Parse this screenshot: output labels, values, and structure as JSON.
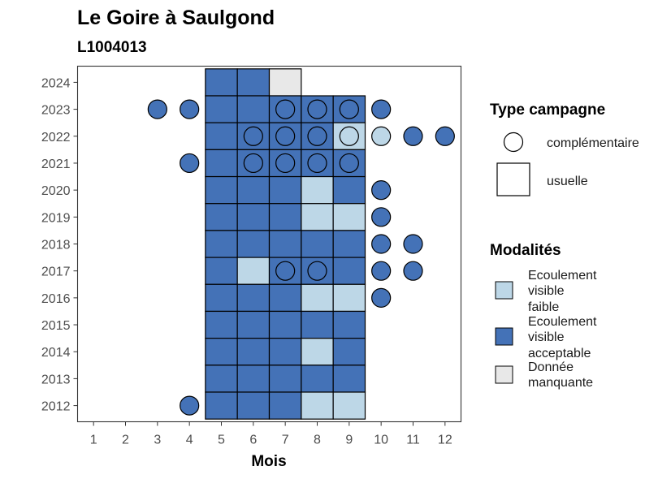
{
  "colors": {
    "acceptable": "#4472b7",
    "faible": "#bdd7e7",
    "manquante": "#e8e8e8"
  },
  "chart_data": {
    "type": "heatmap",
    "title": "Le Goire à Saulgond",
    "subtitle": "L1004013",
    "xlabel": "Mois",
    "ylabel": "",
    "x_ticks": [
      1,
      2,
      3,
      4,
      5,
      6,
      7,
      8,
      9,
      10,
      11,
      12
    ],
    "y_ticks": [
      2012,
      2013,
      2014,
      2015,
      2016,
      2017,
      2018,
      2019,
      2020,
      2021,
      2022,
      2023,
      2024
    ],
    "xlim": [
      0.5,
      12.5
    ],
    "ylim": [
      2011.4,
      2024.6
    ],
    "grid": false,
    "legend": {
      "position": "right",
      "type_title": "Type campagne",
      "type_items": [
        {
          "key": "complementaire",
          "label": "complémentaire",
          "shape": "circle"
        },
        {
          "key": "usuelle",
          "label": "usuelle",
          "shape": "square"
        }
      ],
      "mod_title": "Modalités",
      "mod_items": [
        {
          "key": "faible",
          "lines": [
            "Ecoulement",
            "visible",
            "faible"
          ]
        },
        {
          "key": "acceptable",
          "lines": [
            "Ecoulement",
            "visible",
            "acceptable"
          ]
        },
        {
          "key": "manquante",
          "lines": [
            "Donnée",
            "manquante"
          ]
        }
      ]
    },
    "usuelle": [
      {
        "year": 2024,
        "values": {
          "5": "acceptable",
          "6": "acceptable",
          "7": "manquante"
        }
      },
      {
        "year": 2023,
        "values": {
          "5": "acceptable",
          "6": "acceptable",
          "7": "acceptable",
          "8": "acceptable",
          "9": "acceptable"
        }
      },
      {
        "year": 2022,
        "values": {
          "5": "acceptable",
          "6": "acceptable",
          "7": "acceptable",
          "8": "acceptable",
          "9": "faible"
        }
      },
      {
        "year": 2021,
        "values": {
          "5": "acceptable",
          "6": "acceptable",
          "7": "acceptable",
          "8": "acceptable",
          "9": "acceptable"
        }
      },
      {
        "year": 2020,
        "values": {
          "5": "acceptable",
          "6": "acceptable",
          "7": "acceptable",
          "8": "faible",
          "9": "acceptable"
        }
      },
      {
        "year": 2019,
        "values": {
          "5": "acceptable",
          "6": "acceptable",
          "7": "acceptable",
          "8": "faible",
          "9": "faible"
        }
      },
      {
        "year": 2018,
        "values": {
          "5": "acceptable",
          "6": "acceptable",
          "7": "acceptable",
          "8": "acceptable",
          "9": "acceptable"
        }
      },
      {
        "year": 2017,
        "values": {
          "5": "acceptable",
          "6": "faible",
          "7": "acceptable",
          "8": "acceptable",
          "9": "acceptable"
        }
      },
      {
        "year": 2016,
        "values": {
          "5": "acceptable",
          "6": "acceptable",
          "7": "acceptable",
          "8": "faible",
          "9": "faible"
        }
      },
      {
        "year": 2015,
        "values": {
          "5": "acceptable",
          "6": "acceptable",
          "7": "acceptable",
          "8": "acceptable",
          "9": "acceptable"
        }
      },
      {
        "year": 2014,
        "values": {
          "5": "acceptable",
          "6": "acceptable",
          "7": "acceptable",
          "8": "faible",
          "9": "acceptable"
        }
      },
      {
        "year": 2013,
        "values": {
          "5": "acceptable",
          "6": "acceptable",
          "7": "acceptable",
          "8": "acceptable",
          "9": "acceptable"
        }
      },
      {
        "year": 2012,
        "values": {
          "5": "acceptable",
          "6": "acceptable",
          "7": "acceptable",
          "8": "faible",
          "9": "faible"
        }
      }
    ],
    "complementaire": [
      {
        "year": 2023,
        "month": 3,
        "value": "acceptable"
      },
      {
        "year": 2023,
        "month": 4,
        "value": "acceptable"
      },
      {
        "year": 2023,
        "month": 7,
        "value": "acceptable"
      },
      {
        "year": 2023,
        "month": 8,
        "value": "acceptable"
      },
      {
        "year": 2023,
        "month": 9,
        "value": "acceptable"
      },
      {
        "year": 2023,
        "month": 10,
        "value": "acceptable"
      },
      {
        "year": 2022,
        "month": 6,
        "value": "acceptable"
      },
      {
        "year": 2022,
        "month": 7,
        "value": "acceptable"
      },
      {
        "year": 2022,
        "month": 8,
        "value": "acceptable"
      },
      {
        "year": 2022,
        "month": 9,
        "value": "faible"
      },
      {
        "year": 2022,
        "month": 10,
        "value": "faible"
      },
      {
        "year": 2022,
        "month": 11,
        "value": "acceptable"
      },
      {
        "year": 2022,
        "month": 12,
        "value": "acceptable"
      },
      {
        "year": 2021,
        "month": 4,
        "value": "acceptable"
      },
      {
        "year": 2021,
        "month": 6,
        "value": "acceptable"
      },
      {
        "year": 2021,
        "month": 7,
        "value": "acceptable"
      },
      {
        "year": 2021,
        "month": 8,
        "value": "acceptable"
      },
      {
        "year": 2021,
        "month": 9,
        "value": "acceptable"
      },
      {
        "year": 2020,
        "month": 10,
        "value": "acceptable"
      },
      {
        "year": 2019,
        "month": 10,
        "value": "acceptable"
      },
      {
        "year": 2018,
        "month": 10,
        "value": "acceptable"
      },
      {
        "year": 2018,
        "month": 11,
        "value": "acceptable"
      },
      {
        "year": 2017,
        "month": 7,
        "value": "acceptable"
      },
      {
        "year": 2017,
        "month": 8,
        "value": "acceptable"
      },
      {
        "year": 2017,
        "month": 10,
        "value": "acceptable"
      },
      {
        "year": 2017,
        "month": 11,
        "value": "acceptable"
      },
      {
        "year": 2016,
        "month": 10,
        "value": "acceptable"
      },
      {
        "year": 2012,
        "month": 4,
        "value": "acceptable"
      }
    ]
  }
}
